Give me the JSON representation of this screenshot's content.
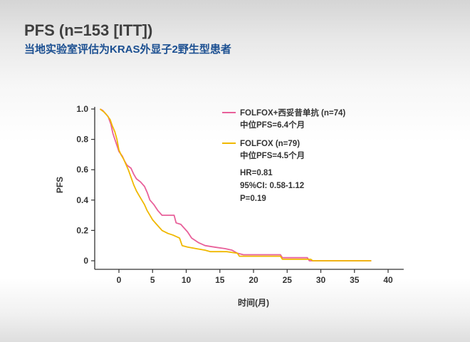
{
  "slide": {
    "title": "PFS (n=153 [ITT])",
    "subtitle": "当地实验室评估为KRAS外显子2野生型患者"
  },
  "colors": {
    "pink": "#e8609a",
    "yellow": "#f0b800",
    "axis": "#333333",
    "subtitle": "#1b4f91"
  },
  "chart_data": {
    "type": "line",
    "step": true,
    "xlabel": "时间(月)",
    "ylabel": "PFS",
    "xlim": [
      -3,
      42
    ],
    "ylim": [
      0,
      1.0
    ],
    "xticks": [
      0,
      5,
      10,
      15,
      20,
      25,
      30,
      35,
      40
    ],
    "yticks": [
      0,
      0.2,
      0.4,
      0.6,
      0.8,
      1.0
    ],
    "ytick_labels": [
      "0",
      "0.2",
      "0.4",
      "0.6",
      "0.8",
      "1.0"
    ],
    "grid": false,
    "legend_position": "top-right",
    "series": [
      {
        "label": "FOLFOX+西妥昔单抗 (n=74)",
        "median_label": "中位PFS=6.4个月",
        "color": "#e8609a",
        "points": [
          [
            -2.8,
            1.0
          ],
          [
            -2.4,
            0.99
          ],
          [
            -2.0,
            0.97
          ],
          [
            -1.6,
            0.95
          ],
          [
            -1.2,
            0.9
          ],
          [
            -0.9,
            0.84
          ],
          [
            -0.6,
            0.8
          ],
          [
            -0.3,
            0.76
          ],
          [
            0.0,
            0.72
          ],
          [
            0.5,
            0.69
          ],
          [
            0.8,
            0.66
          ],
          [
            1.2,
            0.63
          ],
          [
            1.8,
            0.61
          ],
          [
            2.2,
            0.57
          ],
          [
            2.6,
            0.54
          ],
          [
            3.2,
            0.52
          ],
          [
            3.8,
            0.49
          ],
          [
            4.2,
            0.45
          ],
          [
            4.6,
            0.4
          ],
          [
            5.2,
            0.37
          ],
          [
            5.8,
            0.33
          ],
          [
            6.4,
            0.3
          ],
          [
            7.5,
            0.3
          ],
          [
            8.2,
            0.3
          ],
          [
            8.5,
            0.25
          ],
          [
            9.2,
            0.24
          ],
          [
            9.6,
            0.22
          ],
          [
            10.2,
            0.19
          ],
          [
            10.8,
            0.15
          ],
          [
            11.8,
            0.12
          ],
          [
            12.8,
            0.1
          ],
          [
            14.2,
            0.09
          ],
          [
            15.8,
            0.08
          ],
          [
            16.8,
            0.07
          ],
          [
            17.6,
            0.05
          ],
          [
            18.5,
            0.04
          ],
          [
            24.0,
            0.04
          ],
          [
            24.3,
            0.02
          ],
          [
            28.0,
            0.02
          ],
          [
            28.3,
            0.0
          ],
          [
            37.5,
            0.0
          ]
        ]
      },
      {
        "label": "FOLFOX (n=79)",
        "median_label": "中位PFS=4.5个月",
        "color": "#f0b800",
        "points": [
          [
            -2.8,
            1.0
          ],
          [
            -2.2,
            0.98
          ],
          [
            -1.8,
            0.96
          ],
          [
            -1.3,
            0.93
          ],
          [
            -1.0,
            0.89
          ],
          [
            -0.6,
            0.85
          ],
          [
            -0.3,
            0.8
          ],
          [
            0.0,
            0.73
          ],
          [
            0.3,
            0.7
          ],
          [
            0.7,
            0.67
          ],
          [
            1.0,
            0.64
          ],
          [
            1.4,
            0.6
          ],
          [
            1.8,
            0.55
          ],
          [
            2.2,
            0.5
          ],
          [
            2.6,
            0.46
          ],
          [
            3.0,
            0.43
          ],
          [
            3.4,
            0.4
          ],
          [
            3.8,
            0.37
          ],
          [
            4.2,
            0.33
          ],
          [
            4.6,
            0.3
          ],
          [
            5.0,
            0.27
          ],
          [
            5.6,
            0.24
          ],
          [
            6.4,
            0.2
          ],
          [
            7.3,
            0.18
          ],
          [
            8.0,
            0.17
          ],
          [
            9.0,
            0.15
          ],
          [
            9.4,
            0.1
          ],
          [
            10.2,
            0.09
          ],
          [
            11.5,
            0.08
          ],
          [
            12.8,
            0.07
          ],
          [
            13.6,
            0.06
          ],
          [
            14.0,
            0.06
          ],
          [
            16.0,
            0.06
          ],
          [
            17.6,
            0.05
          ],
          [
            17.9,
            0.03
          ],
          [
            24.0,
            0.03
          ],
          [
            24.3,
            0.01
          ],
          [
            26.0,
            0.01
          ],
          [
            28.5,
            0.01
          ],
          [
            28.8,
            0.0
          ],
          [
            37.5,
            0.0
          ]
        ]
      }
    ],
    "annotations": [
      "HR=0.81",
      "95%CI: 0.58-1.12",
      "P=0.19"
    ]
  }
}
